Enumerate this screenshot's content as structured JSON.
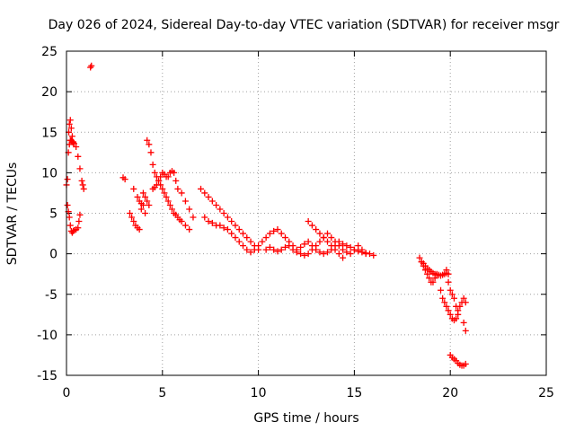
{
  "chart_data": {
    "type": "scatter",
    "title": "Day 026 of 2024, Sidereal Day-to-day VTEC variation (SDTVAR) for receiver msgr",
    "xlabel": "GPS time / hours",
    "ylabel": "SDTVAR / TECUs",
    "xlim": [
      0,
      25
    ],
    "ylim": [
      -15,
      25
    ],
    "x_ticks": [
      0,
      5,
      10,
      15,
      20,
      25
    ],
    "y_ticks": [
      -15,
      -10,
      -5,
      0,
      5,
      10,
      15,
      20,
      25
    ],
    "x_tick_labels": [
      "0",
      "5",
      "10",
      "15",
      "20",
      "25"
    ],
    "y_tick_labels": [
      "-15",
      "-10",
      "-5",
      "0",
      "5",
      "10",
      "15",
      "20",
      "25"
    ],
    "grid": true,
    "marker": "+",
    "color": "#ff0000",
    "series": [
      {
        "name": "SDTVAR",
        "x": [
          0.0,
          0.05,
          0.1,
          0.15,
          0.2,
          0.25,
          0.3,
          0.35,
          0.4,
          0.5,
          0.6,
          0.7,
          0.8,
          0.85,
          0.9,
          0.12,
          0.15,
          0.2,
          0.25,
          0.3,
          0.35,
          0.05,
          0.1,
          0.15,
          0.2,
          0.25,
          0.3,
          0.35,
          0.4,
          0.5,
          0.6,
          0.65,
          0.7,
          1.25,
          1.3,
          2.95,
          3.05,
          3.3,
          3.4,
          3.5,
          3.6,
          3.7,
          3.8,
          3.9,
          4.0,
          4.1,
          3.5,
          3.7,
          3.8,
          3.9,
          4.0,
          4.1,
          4.2,
          4.3,
          4.2,
          4.3,
          4.4,
          4.5,
          4.6,
          4.7,
          4.8,
          4.9,
          5.0,
          5.1,
          5.2,
          5.3,
          5.4,
          5.5,
          5.6,
          5.7,
          5.8,
          4.5,
          4.6,
          4.7,
          4.8,
          4.9,
          5.0,
          5.1,
          5.2,
          5.3,
          5.4,
          5.5,
          5.6,
          5.7,
          5.8,
          5.9,
          6.0,
          6.2,
          6.4,
          6.0,
          6.2,
          6.4,
          6.6,
          7.0,
          7.2,
          7.4,
          7.6,
          7.8,
          8.0,
          8.2,
          8.4,
          8.6,
          8.8,
          9.0,
          9.2,
          9.4,
          9.6,
          9.8,
          10.0,
          7.2,
          7.4,
          7.6,
          7.8,
          8.0,
          8.2,
          8.4,
          8.6,
          8.8,
          9.0,
          9.2,
          9.4,
          9.6,
          9.8,
          10.0,
          10.2,
          10.4,
          10.6,
          10.8,
          11.0,
          11.2,
          11.4,
          11.6,
          11.8,
          12.0,
          12.2,
          12.4,
          12.6,
          12.8,
          13.0,
          13.2,
          13.4,
          13.6,
          13.8,
          14.0,
          14.2,
          14.4,
          14.6,
          14.8,
          15.0,
          15.2,
          15.4,
          15.6,
          15.8,
          16.0,
          10.4,
          10.6,
          10.8,
          11.0,
          11.2,
          11.4,
          11.6,
          11.8,
          12.0,
          12.2,
          12.4,
          12.6,
          12.8,
          13.0,
          13.2,
          13.4,
          13.6,
          13.8,
          14.0,
          14.2,
          14.4,
          14.6,
          14.8,
          15.0,
          15.2,
          15.4,
          15.6,
          12.6,
          12.8,
          13.0,
          13.2,
          13.4,
          13.6,
          13.8,
          14.0,
          14.2,
          14.4,
          18.4,
          18.5,
          18.6,
          18.7,
          18.8,
          18.9,
          19.0,
          19.1,
          19.2,
          19.3,
          18.5,
          18.6,
          18.7,
          18.8,
          18.9,
          19.0,
          19.1,
          19.2,
          19.3,
          19.4,
          19.5,
          19.6,
          19.7,
          19.8,
          19.9,
          19.5,
          19.6,
          19.7,
          19.8,
          19.9,
          20.0,
          20.1,
          20.2,
          20.3,
          20.4,
          19.8,
          19.9,
          20.0,
          20.1,
          20.2,
          20.3,
          20.4,
          20.5,
          20.6,
          20.7,
          20.8,
          20.7,
          20.8,
          20.0,
          20.1,
          20.2,
          20.3,
          20.4,
          20.5,
          20.6,
          20.7,
          20.8
        ],
        "y": [
          8.5,
          9.2,
          12.5,
          13.5,
          14.0,
          14.0,
          13.8,
          13.7,
          13.6,
          13.2,
          12.0,
          10.5,
          9.0,
          8.5,
          8.0,
          15.0,
          16.0,
          16.5,
          15.5,
          14.5,
          13.8,
          6.0,
          5.2,
          4.5,
          3.5,
          2.8,
          2.6,
          2.8,
          2.9,
          3.0,
          3.2,
          4.0,
          4.8,
          23.0,
          23.2,
          9.4,
          9.2,
          5.0,
          4.5,
          4.0,
          3.5,
          3.2,
          3.0,
          5.5,
          6.0,
          5.0,
          8.0,
          7.0,
          6.5,
          6.2,
          7.5,
          7.0,
          6.5,
          6.0,
          14.0,
          13.5,
          12.5,
          11.0,
          10.0,
          9.5,
          9.0,
          9.5,
          10.0,
          9.8,
          9.5,
          9.5,
          10.0,
          10.2,
          10.0,
          9.0,
          8.0,
          8.0,
          8.2,
          8.5,
          9.0,
          8.5,
          8.0,
          7.5,
          7.0,
          6.5,
          6.0,
          5.5,
          5.0,
          4.8,
          4.5,
          4.2,
          4.0,
          3.5,
          3.0,
          7.5,
          6.5,
          5.5,
          4.5,
          8.0,
          7.5,
          7.0,
          6.5,
          6.0,
          5.5,
          5.0,
          4.5,
          4.0,
          3.5,
          3.0,
          2.5,
          2.0,
          1.5,
          1.0,
          0.5,
          4.5,
          4.0,
          3.8,
          3.5,
          3.5,
          3.2,
          3.0,
          2.5,
          2.0,
          1.5,
          1.0,
          0.5,
          0.2,
          0.5,
          1.0,
          1.5,
          2.0,
          2.5,
          2.8,
          3.0,
          2.5,
          2.0,
          1.5,
          1.0,
          0.5,
          0.8,
          1.2,
          1.5,
          1.0,
          0.5,
          0.2,
          0.0,
          0.2,
          0.5,
          1.0,
          1.5,
          1.2,
          1.0,
          0.8,
          0.5,
          0.3,
          0.2,
          0.1,
          0.0,
          -0.2,
          0.5,
          0.8,
          0.5,
          0.3,
          0.5,
          0.8,
          1.0,
          0.5,
          0.2,
          0.0,
          -0.2,
          0.0,
          0.5,
          1.0,
          1.5,
          2.0,
          2.5,
          2.0,
          1.5,
          1.0,
          0.5,
          0.2,
          0.0,
          0.5,
          1.0,
          0.5,
          0.0,
          4.0,
          3.5,
          3.0,
          2.5,
          2.0,
          1.5,
          1.0,
          0.5,
          0.0,
          -0.5,
          -0.5,
          -1.0,
          -1.5,
          -2.0,
          -2.5,
          -3.0,
          -3.5,
          -3.5,
          -3.0,
          -2.5,
          -1.0,
          -1.2,
          -1.5,
          -1.8,
          -2.0,
          -2.2,
          -2.4,
          -2.5,
          -2.6,
          -2.6,
          -2.7,
          -2.6,
          -2.5,
          -2.4,
          -2.5,
          -4.5,
          -5.5,
          -6.0,
          -6.5,
          -7.0,
          -7.5,
          -8.0,
          -8.2,
          -8.0,
          -7.5,
          -2.0,
          -3.5,
          -4.5,
          -5.0,
          -5.5,
          -6.5,
          -7.0,
          -6.5,
          -6.0,
          -5.5,
          -6.0,
          -8.5,
          -9.5,
          -12.5,
          -12.8,
          -13.0,
          -13.2,
          -13.5,
          -13.7,
          -13.8,
          -13.8,
          -13.6
        ]
      }
    ]
  }
}
